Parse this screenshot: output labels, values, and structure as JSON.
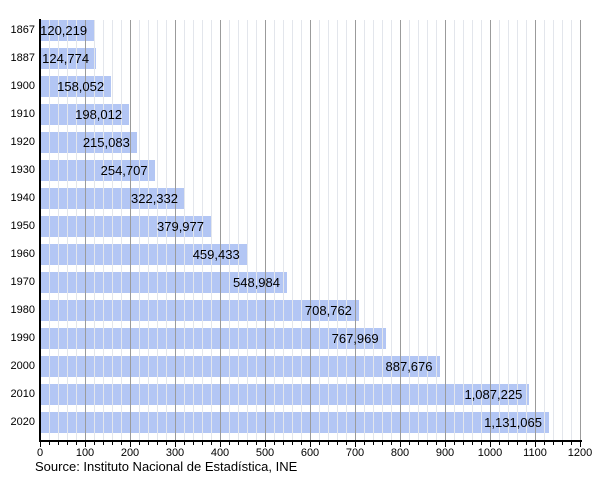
{
  "chart_data": {
    "type": "bar",
    "orientation": "horizontal",
    "title": "",
    "xlabel": "",
    "ylabel": "",
    "categories": [
      "1867",
      "1887",
      "1900",
      "1910",
      "1920",
      "1930",
      "1940",
      "1950",
      "1960",
      "1970",
      "1980",
      "1990",
      "2000",
      "2010",
      "2020"
    ],
    "values": [
      120219,
      124774,
      158052,
      198012,
      215083,
      254707,
      322332,
      379977,
      459433,
      548984,
      708762,
      767969,
      887676,
      1087225,
      1131065
    ],
    "value_labels": [
      "120,219",
      "124,774",
      "158,052",
      "198,012",
      "215,083",
      "254,707",
      "322,332",
      "379,977",
      "459,433",
      "548,984",
      "708,762",
      "767,969",
      "887,676",
      "1,087,225",
      "1,131,065"
    ],
    "x_axis": {
      "min": 0,
      "max": 1200,
      "value_scale": 1000,
      "major_tick_step": 100,
      "minor_tick_step": 20,
      "tick_labels": [
        "0",
        "100",
        "200",
        "300",
        "400",
        "500",
        "600",
        "700",
        "800",
        "900",
        "1000",
        "1100",
        "1200"
      ]
    },
    "grid": "vertical, minor every 20, major every 100",
    "legend": "none"
  },
  "source_note": "Source: Instituto Nacional de Estadística, INE",
  "colors": {
    "bar": "#b3c6f4",
    "grid_minor": "#e3e6ec",
    "grid_major": "#9b9b9b",
    "axis": "#000000",
    "text": "#000000",
    "background": "#ffffff"
  }
}
